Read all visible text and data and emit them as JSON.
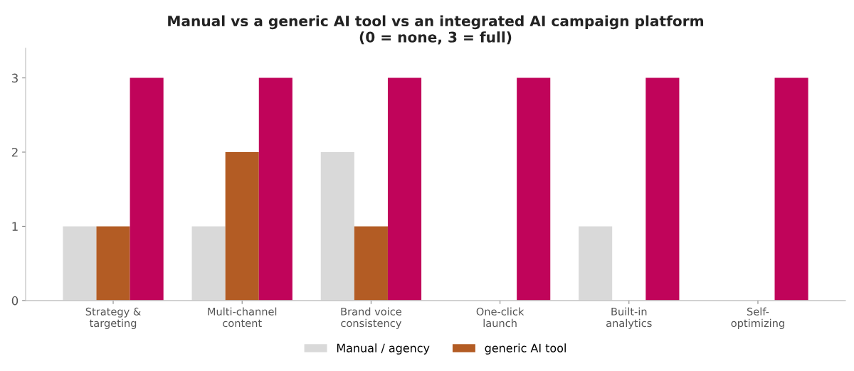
{
  "chart_data": {
    "type": "bar",
    "title": "Manual vs a generic AI tool vs an integrated AI campaign platform\n(0 = none, 3 = full)",
    "categories": [
      "Strategy &\ntargeting",
      "Multi-channel\ncontent",
      "Brand voice\nconsistency",
      "One-click\nlaunch",
      "Built-in\nanalytics",
      "Self-\noptimizing"
    ],
    "series": [
      {
        "name": "Manual / agency",
        "color": "#d9d9d9",
        "values": [
          1,
          1,
          2,
          0,
          1,
          0
        ]
      },
      {
        "name": "generic AI tool",
        "color": "#b35c24",
        "values": [
          1,
          2,
          1,
          0,
          0,
          0
        ]
      },
      {
        "color": "#c0045a",
        "values": [
          3,
          3,
          3,
          3,
          3,
          3
        ]
      }
    ],
    "ylim": [
      0,
      3.4
    ],
    "yticks": [
      0,
      1,
      2,
      3
    ],
    "grid": false,
    "legend": "bottom"
  }
}
